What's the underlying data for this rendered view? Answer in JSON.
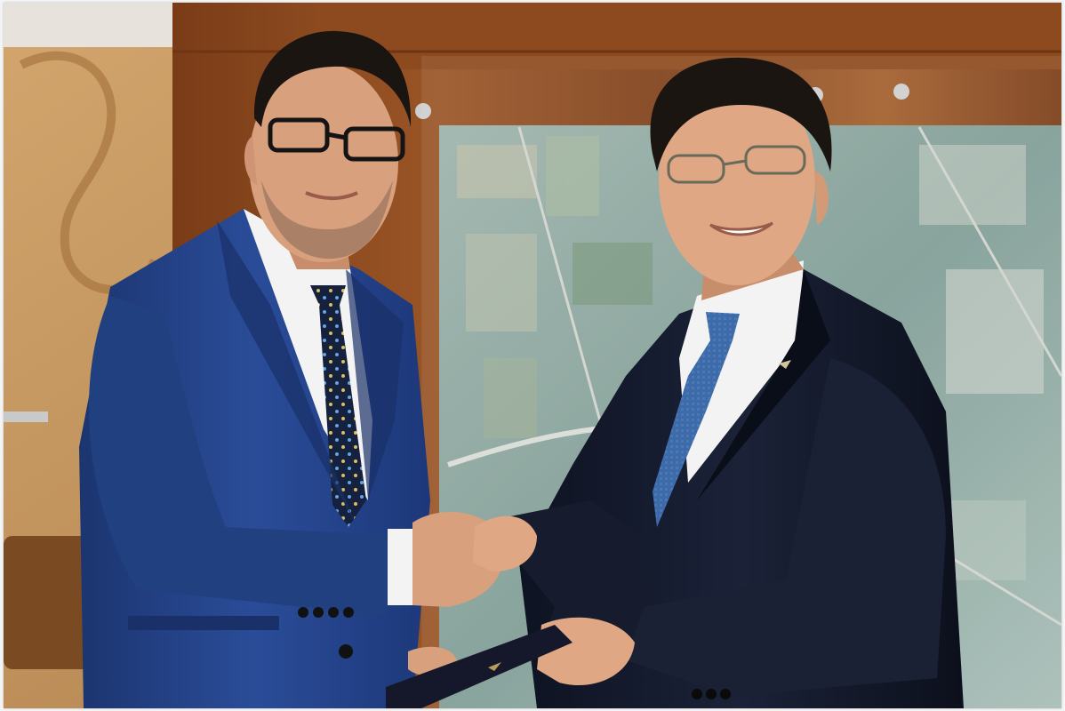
{
  "photo": {
    "scene": "handshake",
    "colors": {
      "wood_panel": "#8c4a1e",
      "wood_dark": "#6e3512",
      "left_wall": "#b98a55",
      "aerial_map": "#7f9c95",
      "left_suit": "#22428a",
      "right_suit": "#141a2c",
      "shirt": "#f3f3f3",
      "skin": "#d9a07e",
      "hair": "#1b1512",
      "left_tie": "#16203f",
      "right_tie": "#3d6aa8",
      "folder": "#15182a"
    },
    "icons": [
      "glasses-icon",
      "lapel-pin-icon",
      "folder-emblem-icon"
    ]
  }
}
